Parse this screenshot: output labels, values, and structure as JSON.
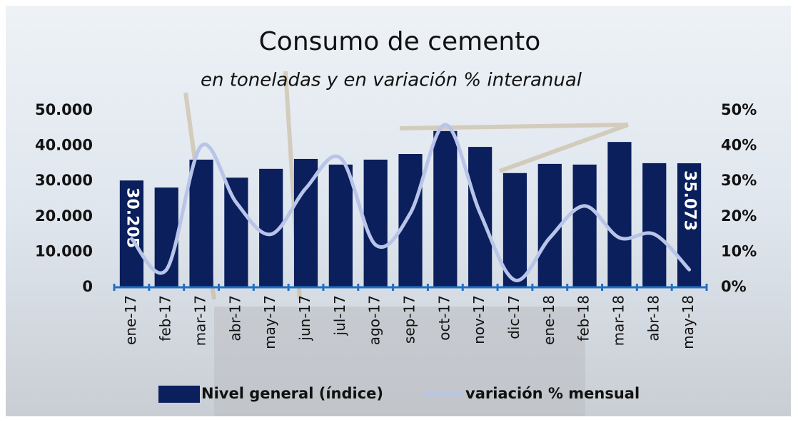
{
  "chart_data": {
    "type": "bar-line",
    "title": "Consumo de cemento",
    "subtitle": "en toneladas y en variación % interanual",
    "categories": [
      "ene-17",
      "feb-17",
      "mar-17",
      "abr-17",
      "may-17",
      "jun-17",
      "jul-17",
      "ago-17",
      "sep-17",
      "oct-17",
      "nov-17",
      "dic-17",
      "ene-18",
      "feb-18",
      "mar-18",
      "abr-18",
      "may-18"
    ],
    "series": [
      {
        "name": "Nivel general (índice)",
        "type": "bar",
        "color": "#0a1f5c",
        "values": [
          30205,
          28200,
          36100,
          31000,
          33500,
          36300,
          34700,
          36100,
          37700,
          44200,
          39700,
          32300,
          34900,
          34700,
          41100,
          35100,
          35073
        ],
        "value_labels": [
          "30.205",
          null,
          null,
          null,
          null,
          null,
          null,
          null,
          null,
          null,
          null,
          null,
          null,
          null,
          null,
          null,
          "35.073"
        ]
      },
      {
        "name": "variación % mensual",
        "type": "line",
        "color": "#b8c4e8",
        "axis": "y2",
        "values": [
          13.7,
          5,
          40,
          24,
          15,
          28,
          36.5,
          12,
          21,
          46,
          21,
          2,
          14,
          23,
          14,
          15,
          5
        ]
      }
    ],
    "ylim": [
      0,
      50000
    ],
    "yticks": [
      0,
      {
        "value": 10000,
        "label": "10.000"
      },
      {
        "value": 20000,
        "label": "20.000"
      },
      {
        "value": 30000,
        "label": "30.000"
      },
      {
        "value": 40000,
        "label": "40.000"
      },
      {
        "value": 50000,
        "label": "50.000"
      }
    ],
    "y2lim": [
      0,
      50
    ],
    "y2ticks": [
      {
        "value": 0,
        "label": "0%"
      },
      {
        "value": 10,
        "label": "10%"
      },
      {
        "value": 20,
        "label": "20%"
      },
      {
        "value": 30,
        "label": "30%"
      },
      {
        "value": 40,
        "label": "40%"
      },
      {
        "value": 50,
        "label": "50%"
      }
    ],
    "grid": false
  }
}
